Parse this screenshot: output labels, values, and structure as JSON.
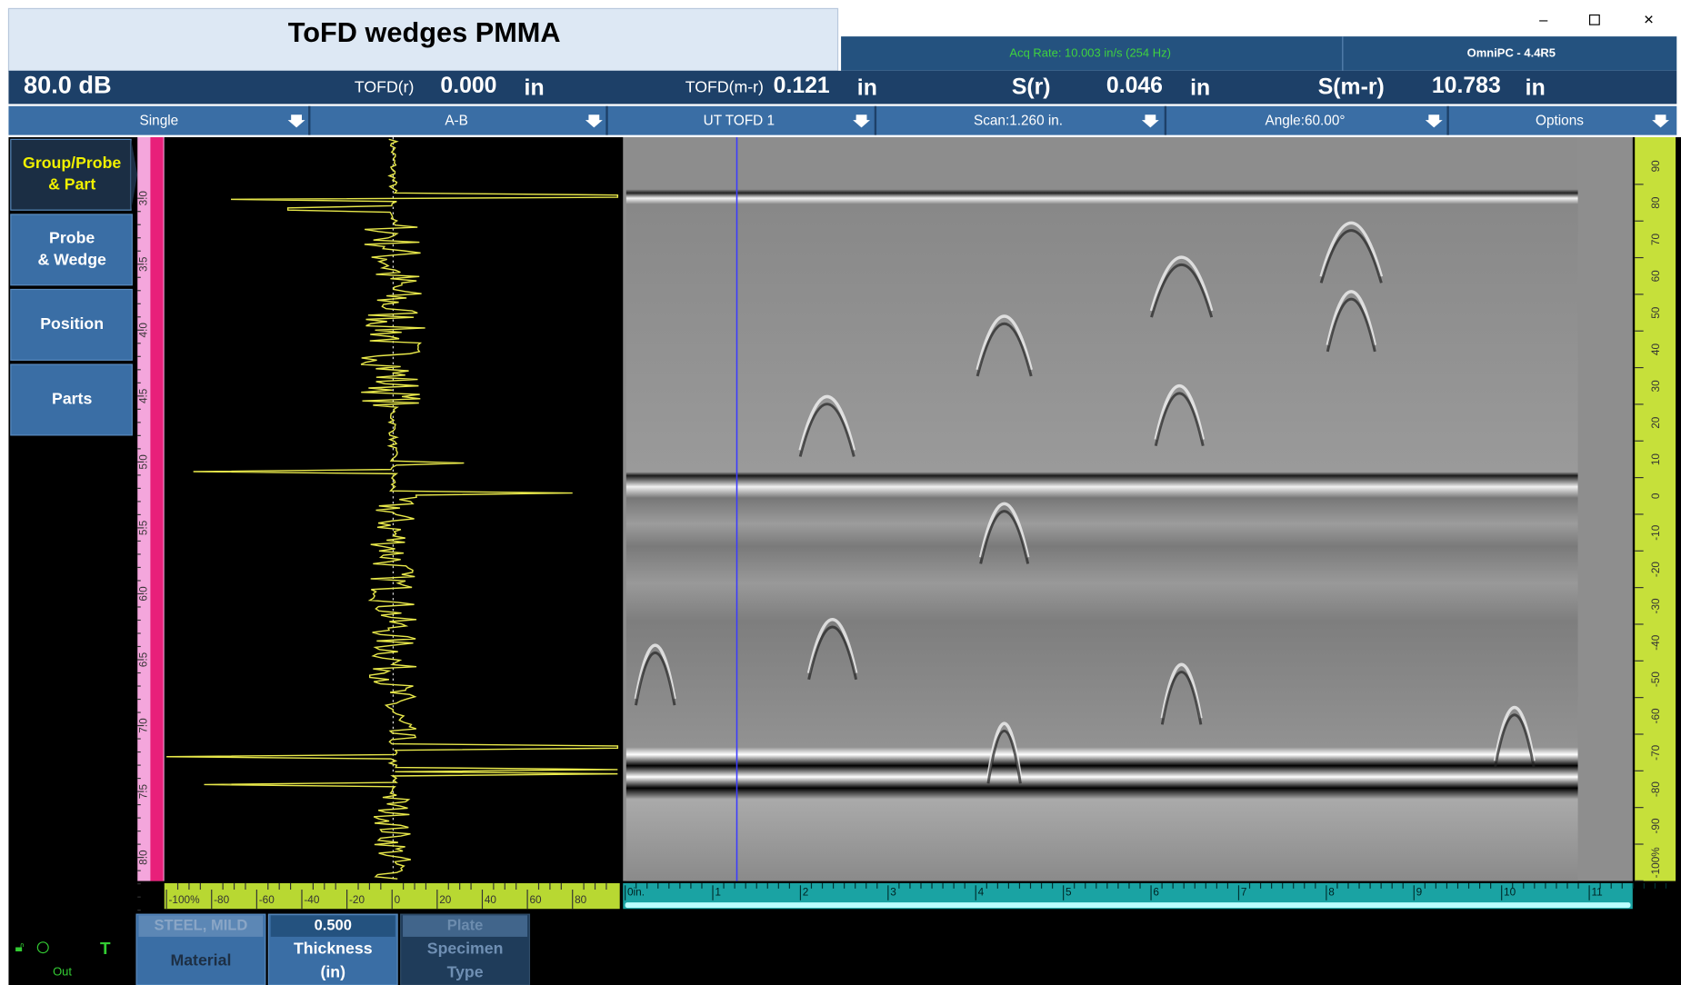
{
  "window": {
    "title": "ToFD wedges PMMA",
    "acq_rate": "Acq Rate: 10.003 in/s (254 Hz)",
    "app": "OmniPC - 4.4R5"
  },
  "readings": {
    "gain": "80.0 dB",
    "items": [
      {
        "label": "TOFD(r)",
        "value": "0.000",
        "unit": "in"
      },
      {
        "label": "TOFD(m-r)",
        "value": "0.121",
        "unit": "in"
      },
      {
        "label": "S(r)",
        "value": "0.046",
        "unit": "in"
      },
      {
        "label": "S(m-r)",
        "value": "10.783",
        "unit": "in"
      }
    ]
  },
  "toolbar": [
    "Single",
    "A-B",
    "UT TOFD 1",
    "Scan:1.260 in.",
    "Angle:60.00°",
    "Options"
  ],
  "menu": [
    [
      "Group/Probe",
      "& Part"
    ],
    [
      "Probe",
      "& Wedge"
    ],
    [
      "Position"
    ],
    [
      "Parts"
    ]
  ],
  "ascan_axis": [
    "-100%",
    "-80",
    "-60",
    "-40",
    "-20",
    "0",
    "20",
    "40",
    "60",
    "80"
  ],
  "depth_axis": [
    "3.0",
    "3.5",
    "4.0",
    "4.5",
    "5.0",
    "5.5",
    "6.0",
    "6.5",
    "7.0",
    "7.5",
    "8.0"
  ],
  "scan_axis": [
    "0in.",
    "1",
    "2",
    "3",
    "4",
    "5",
    "6",
    "7",
    "8",
    "9",
    "10",
    "11"
  ],
  "amplitude_axis": [
    "90",
    "80",
    "70",
    "60",
    "50",
    "40",
    "30",
    "20",
    "10",
    "0",
    "-10",
    "-20",
    "-30",
    "-40",
    "-50",
    "-60",
    "-70",
    "-80",
    "-90",
    "-100%"
  ],
  "parameters": [
    {
      "value": "STEEL, MILD",
      "label": [
        "Material"
      ]
    },
    {
      "value": "0.500",
      "label": [
        "Thickness",
        "(in)"
      ]
    },
    {
      "value": "Plate",
      "label": [
        "Specimen",
        "Type"
      ]
    }
  ],
  "status": "Out"
}
